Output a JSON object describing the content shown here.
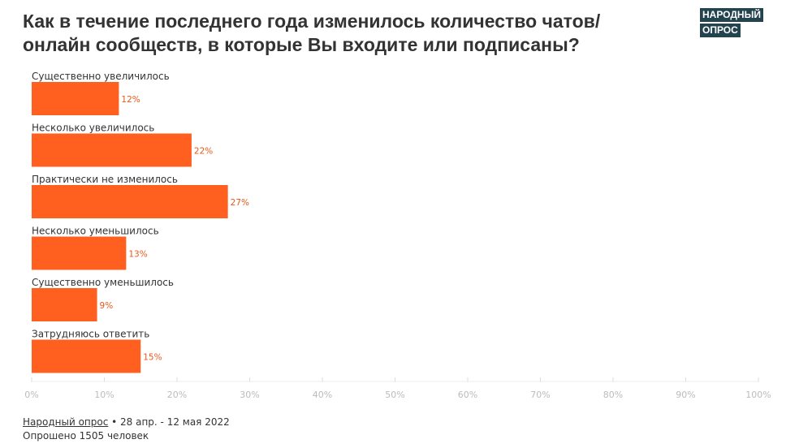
{
  "title": "Как в течение последнего года изменилось количество чатов/ онлайн сообществ, в которые Вы входите или подписаны?",
  "logo": {
    "line1": "НАРОДНЫЙ",
    "line2": "ОПРОС"
  },
  "footer": {
    "source_link": "Народный опрос",
    "dates": " • 28 апр. - 12 мая 2022",
    "sample": "Опрошено 1505 человек"
  },
  "chart_data": {
    "type": "bar",
    "orientation": "horizontal",
    "categories": [
      "Существенно увеличилось",
      "Несколько увеличилось",
      "Практически не изменилось",
      "Несколько уменьшилось",
      "Существенно уменьшилось",
      "Затрудняюсь ответить"
    ],
    "values": [
      12,
      22,
      27,
      13,
      9,
      15
    ],
    "value_labels": [
      "12%",
      "22%",
      "27%",
      "13%",
      "9%",
      "15%"
    ],
    "xlim": [
      0,
      100
    ],
    "xticks": [
      "0%",
      "10%",
      "20%",
      "30%",
      "40%",
      "50%",
      "60%",
      "70%",
      "80%",
      "90%",
      "100%"
    ],
    "bar_color": "#ff5f1f",
    "label_color": "#e85a1a"
  }
}
